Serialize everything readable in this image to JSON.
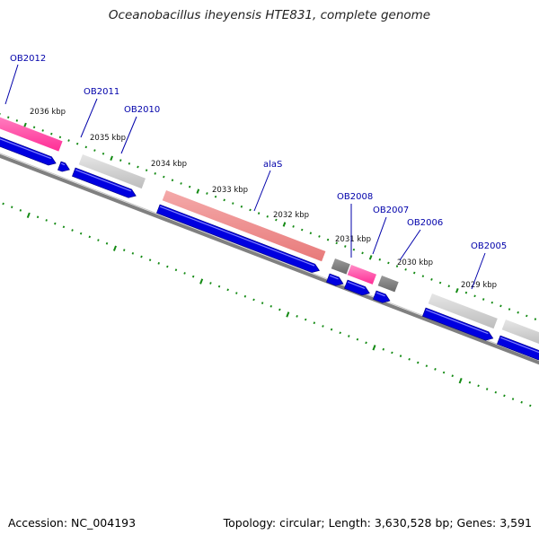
{
  "title": "Oceanobacillus iheyensis HTE831, complete genome",
  "footer": {
    "accession": "Accession: NC_004193",
    "topology": "Topology: circular; Length: 3,630,528 bp; Genes: 3,591"
  },
  "colors": {
    "backbone": "#808080",
    "forward_cds": "#0000e0",
    "gene_label": "#0000aa",
    "tick": "#138a13",
    "pink_feature": "#ff2d96",
    "salmon_feature": "#e87a7a",
    "gray_feature": "#bdbdbd",
    "dark_gray_feature": "#6a6a6a"
  },
  "scale_labels": [
    "2036 kbp",
    "2035 kbp",
    "2034 kbp",
    "2033 kbp",
    "2032 kbp",
    "2031 kbp",
    "2030 kbp",
    "2029 kbp"
  ],
  "gene_labels": [
    "OB2012",
    "OB2011",
    "OB2010",
    "alaS",
    "OB2008",
    "OB2007",
    "OB2006",
    "OB2005"
  ]
}
